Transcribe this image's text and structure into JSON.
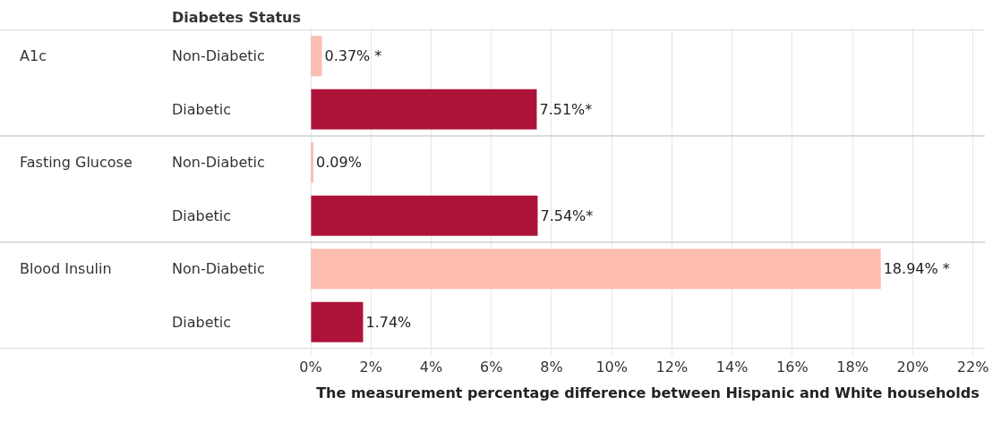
{
  "chart_data": {
    "type": "bar",
    "orientation": "horizontal",
    "ylabel": "Diabetes Status",
    "xlabel": "The measurement percentage difference between Hispanic and White households",
    "categories": [
      "Non-Diabetic",
      "Diabetic",
      "Non-Diabetic",
      "Diabetic",
      "Non-Diabetic",
      "Diabetic"
    ],
    "values": [
      0.37,
      7.51,
      0.09,
      7.54,
      18.94,
      1.74
    ],
    "colors": [
      "#fdbcb0",
      "#ad1339",
      "#fdbcb0",
      "#ad1339",
      "#fdbcb0",
      "#ad1339"
    ],
    "value_labels": [
      "0.37% *",
      "7.51%*",
      "0.09%",
      "7.54%*",
      "18.94% *",
      "1.74%"
    ],
    "annotations": [
      "A1c",
      "Fasting Glucose",
      "Blood Insulin"
    ],
    "xlim": [
      0,
      22.4
    ],
    "xticks": [
      {
        "value": 0,
        "label": "0%"
      },
      {
        "value": 2,
        "label": "2%"
      },
      {
        "value": 4,
        "label": "4%"
      },
      {
        "value": 6,
        "label": "6%"
      },
      {
        "value": 8,
        "label": "8%"
      },
      {
        "value": 10,
        "label": "10%"
      },
      {
        "value": 12,
        "label": "12%"
      },
      {
        "value": 14,
        "label": "14%"
      },
      {
        "value": 16,
        "label": "16%"
      },
      {
        "value": 18,
        "label": "18%"
      },
      {
        "value": 20,
        "label": "20%"
      },
      {
        "value": 22,
        "label": "22%"
      }
    ],
    "grid": "x"
  }
}
